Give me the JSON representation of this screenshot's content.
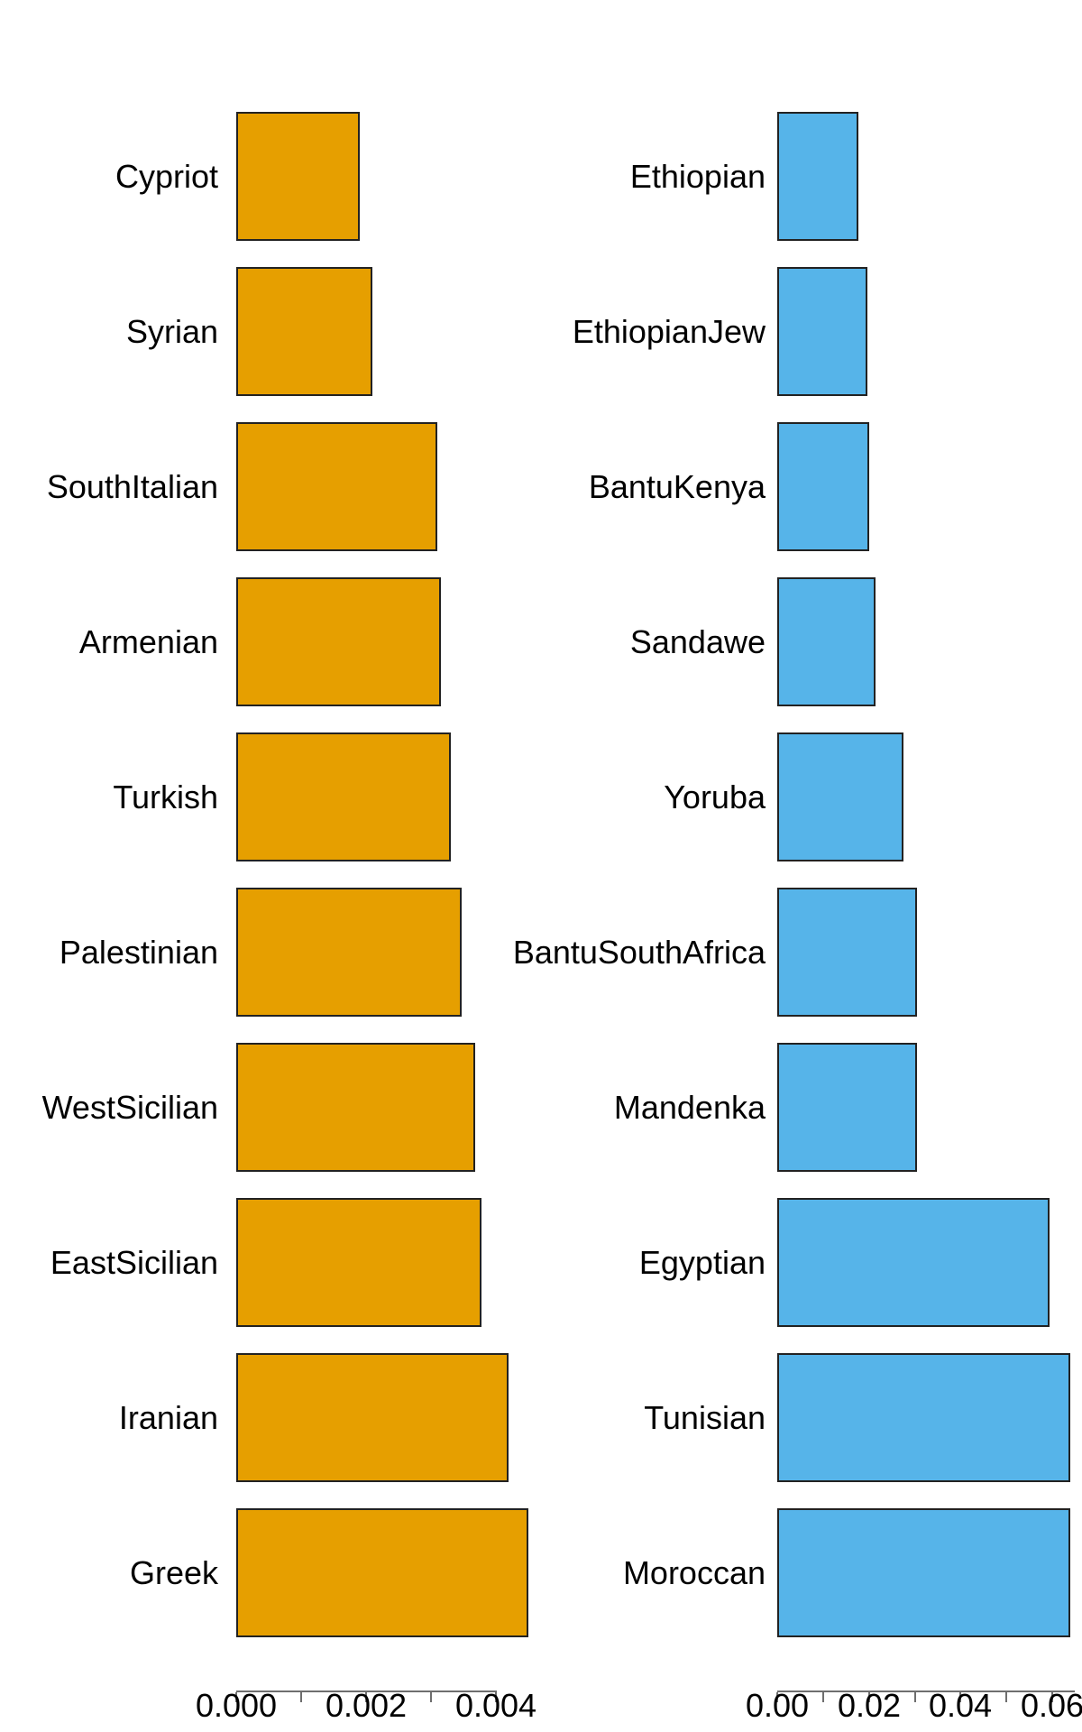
{
  "figure": {
    "background_color": "#ffffff",
    "text_color": "#000000",
    "axis_color": "#6e6e6e",
    "bar_border_color": "#222222"
  },
  "chart_data": [
    {
      "type": "bar",
      "orientation": "horizontal",
      "title": "",
      "xlabel": "",
      "ylabel": "",
      "bar_color": "#E69F00",
      "categories": [
        "Cypriot",
        "Syrian",
        "SouthItalian",
        "Armenian",
        "Turkish",
        "Palestinian",
        "WestSicilian",
        "EastSicilian",
        "Iranian",
        "Greek"
      ],
      "values": [
        0.0019,
        0.0021,
        0.0031,
        0.00315,
        0.0033,
        0.00347,
        0.00368,
        0.00378,
        0.0042,
        0.0045
      ],
      "xlim": [
        0,
        0.0045
      ],
      "tick_step": 0.001,
      "tick_values": [
        0,
        0.001,
        0.002,
        0.003,
        0.004
      ],
      "tick_labels": [
        {
          "value": 0,
          "label": "0.000"
        },
        {
          "value": 0.002,
          "label": "0.002"
        },
        {
          "value": 0.004,
          "label": "0.004"
        }
      ],
      "grid": "off",
      "legend": "none"
    },
    {
      "type": "bar",
      "orientation": "horizontal",
      "title": "",
      "xlabel": "",
      "ylabel": "",
      "bar_color": "#56B4E9",
      "categories": [
        "Ethiopian",
        "EthiopianJew",
        "BantuKenya",
        "Sandawe",
        "Yoruba",
        "BantuSouthAfrica",
        "Mandenka",
        "Egyptian",
        "Tunisian",
        "Moroccan"
      ],
      "values": [
        0.0177,
        0.0197,
        0.0201,
        0.0214,
        0.0275,
        0.0304,
        0.0304,
        0.0593,
        0.0639,
        0.0639
      ],
      "xlim": [
        0,
        0.065
      ],
      "tick_step": 0.01,
      "tick_values": [
        0,
        0.01,
        0.02,
        0.03,
        0.04,
        0.05,
        0.06
      ],
      "tick_labels": [
        {
          "value": 0,
          "label": "0.00"
        },
        {
          "value": 0.02,
          "label": "0.02"
        },
        {
          "value": 0.04,
          "label": "0.04"
        },
        {
          "value": 0.06,
          "label": "0.06"
        }
      ],
      "grid": "off",
      "legend": "none"
    }
  ]
}
